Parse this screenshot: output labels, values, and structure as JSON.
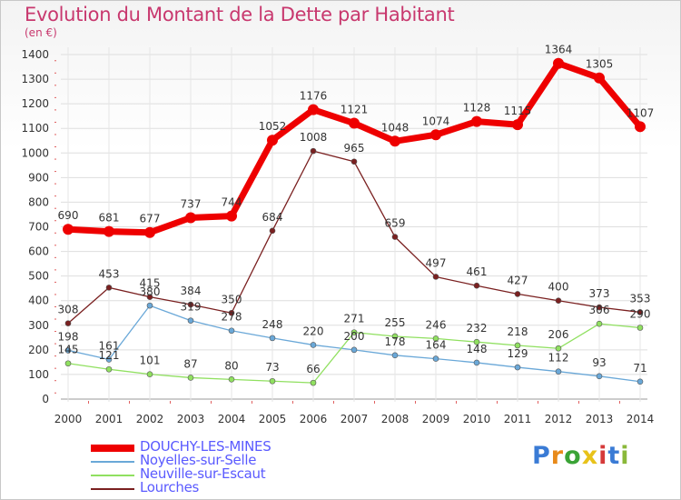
{
  "title": "Evolution du Montant de la Dette par Habitant",
  "subtitle": "(en €)",
  "logo": {
    "letters": [
      "P",
      "r",
      "o",
      "x",
      "i",
      "t",
      "i"
    ],
    "colors": [
      "#3a7bd5",
      "#e88a1a",
      "#3aa336",
      "#e8c21a",
      "#d53a3a",
      "#3a7bd5",
      "#8ab83a"
    ]
  },
  "chart_data": {
    "type": "line",
    "x": [
      "2000",
      "2001",
      "2002",
      "2003",
      "2004",
      "2005",
      "2006",
      "2007",
      "2008",
      "2009",
      "2010",
      "2011",
      "2012",
      "2013",
      "2014"
    ],
    "ylim": [
      0,
      1400
    ],
    "yticks": [
      "0",
      "100",
      "200",
      "300",
      "400",
      "500",
      "600",
      "700",
      "800",
      "900",
      "1000",
      "1100",
      "1200",
      "1300",
      "1400"
    ],
    "grid": true,
    "legend_position": "bottom-left",
    "series": [
      {
        "name": "DOUCHY-LES-MINES",
        "color": "#ee0000",
        "values": [
          690,
          681,
          677,
          737,
          744,
          1052,
          1176,
          1121,
          1048,
          1074,
          1128,
          1115,
          1364,
          1305,
          1107
        ],
        "labels": [
          "690",
          "681",
          "677",
          "737",
          "744",
          "1052",
          "1176",
          "1121",
          "1048",
          "1074",
          "1128",
          "1115",
          "1364",
          "1305",
          "1107"
        ]
      },
      {
        "name": "Noyelles-sur-Selle",
        "color": "#6aa8d8",
        "values": [
          198,
          161,
          380,
          319,
          278,
          248,
          220,
          200,
          178,
          164,
          148,
          129,
          112,
          93,
          71
        ],
        "labels": [
          "198",
          "161",
          "380",
          "319",
          "278",
          "248",
          "220",
          "200",
          "178",
          "164",
          "148",
          "129",
          "112",
          "93",
          "71"
        ]
      },
      {
        "name": "Neuville-sur-Escaut",
        "color": "#90e060",
        "values": [
          145,
          121,
          101,
          87,
          80,
          73,
          66,
          271,
          255,
          246,
          232,
          218,
          206,
          306,
          290
        ],
        "labels": [
          "145",
          "121",
          "101",
          "87",
          "80",
          "73",
          "66",
          "271",
          "255",
          "246",
          "232",
          "218",
          "206",
          "306",
          "290"
        ]
      },
      {
        "name": "Lourches",
        "color": "#7a2020",
        "values": [
          308,
          453,
          415,
          384,
          350,
          684,
          1008,
          965,
          659,
          497,
          461,
          427,
          400,
          373,
          353
        ],
        "labels": [
          "308",
          "453",
          "415",
          "384",
          "350",
          "684",
          "1008",
          "965",
          "659",
          "497",
          "461",
          "427",
          "400",
          "373",
          "353"
        ]
      }
    ]
  }
}
